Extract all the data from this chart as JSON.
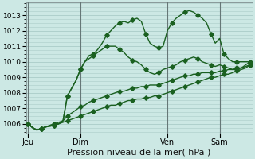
{
  "title": "Pression niveau de la mer( hPa )",
  "bg_color": "#cce8e4",
  "grid_color": "#aaccc8",
  "line_color": "#1a6020",
  "marker_color": "#1a6020",
  "ylim": [
    1005.4,
    1013.8
  ],
  "yticks": [
    1006,
    1007,
    1008,
    1009,
    1010,
    1011,
    1012,
    1013
  ],
  "xtick_labels": [
    "Jeu",
    "Dim",
    "Ven",
    "Sam"
  ],
  "xtick_positions": [
    0,
    12,
    32,
    44
  ],
  "total_points": 52,
  "vline_positions": [
    0,
    12,
    32,
    44
  ],
  "series": [
    [
      1006.0,
      1005.75,
      1005.6,
      1005.7,
      1005.8,
      1005.85,
      1005.9,
      1006.0,
      1006.2,
      1007.8,
      1008.3,
      1008.8,
      1009.5,
      1010.0,
      1010.4,
      1010.5,
      1010.8,
      1011.2,
      1011.7,
      1012.0,
      1012.3,
      1012.5,
      1012.6,
      1012.5,
      1012.7,
      1012.8,
      1012.6,
      1011.8,
      1011.2,
      1011.0,
      1010.9,
      1011.0,
      1012.0,
      1012.5,
      1012.8,
      1013.0,
      1013.2,
      1013.3,
      1013.2,
      1013.0,
      1012.8,
      1012.5,
      1011.8,
      1011.2,
      1011.5,
      1010.5,
      1010.2,
      1010.0,
      1010.0,
      1010.0,
      1010.0,
      1010.0
    ],
    [
      1006.0,
      1005.75,
      1005.6,
      1005.7,
      1005.8,
      1005.85,
      1005.9,
      1006.0,
      1006.2,
      1007.8,
      1008.3,
      1008.8,
      1009.5,
      1010.0,
      1010.2,
      1010.4,
      1010.6,
      1010.8,
      1011.0,
      1011.0,
      1011.0,
      1010.8,
      1010.6,
      1010.3,
      1010.1,
      1010.0,
      1009.8,
      1009.5,
      1009.3,
      1009.2,
      1009.3,
      1009.5,
      1009.6,
      1009.7,
      1009.8,
      1010.0,
      1010.1,
      1010.2,
      1010.3,
      1010.2,
      1010.0,
      1009.9,
      1009.8,
      1009.7,
      1009.8,
      1009.7,
      1009.6,
      1009.5,
      1009.5,
      1009.6,
      1009.8,
      1010.0
    ],
    [
      1006.0,
      1005.75,
      1005.6,
      1005.7,
      1005.8,
      1005.9,
      1006.0,
      1006.1,
      1006.2,
      1006.5,
      1006.7,
      1006.9,
      1007.1,
      1007.2,
      1007.4,
      1007.5,
      1007.6,
      1007.7,
      1007.8,
      1007.9,
      1008.0,
      1008.1,
      1008.1,
      1008.2,
      1008.3,
      1008.3,
      1008.4,
      1008.4,
      1008.5,
      1008.5,
      1008.5,
      1008.6,
      1008.7,
      1008.8,
      1008.9,
      1009.0,
      1009.1,
      1009.1,
      1009.2,
      1009.2,
      1009.3,
      1009.3,
      1009.3,
      1009.3,
      1009.4,
      1009.4,
      1009.5,
      1009.5,
      1009.6,
      1009.6,
      1009.7,
      1009.8
    ],
    [
      1006.0,
      1005.75,
      1005.6,
      1005.7,
      1005.8,
      1005.9,
      1006.0,
      1006.0,
      1006.1,
      1006.2,
      1006.3,
      1006.4,
      1006.5,
      1006.6,
      1006.7,
      1006.8,
      1006.9,
      1007.0,
      1007.1,
      1007.2,
      1007.2,
      1007.3,
      1007.4,
      1007.5,
      1007.5,
      1007.6,
      1007.6,
      1007.7,
      1007.7,
      1007.8,
      1007.8,
      1007.9,
      1008.0,
      1008.1,
      1008.2,
      1008.3,
      1008.4,
      1008.5,
      1008.6,
      1008.7,
      1008.8,
      1008.9,
      1009.0,
      1009.0,
      1009.1,
      1009.2,
      1009.2,
      1009.3,
      1009.4,
      1009.5,
      1009.6,
      1009.8
    ]
  ],
  "marker_every": 3,
  "ylabel_fontsize": 6.5,
  "xlabel_fontsize": 8.0,
  "xtick_fontsize": 7.0,
  "line_width": 1.0,
  "marker_size": 2.8
}
